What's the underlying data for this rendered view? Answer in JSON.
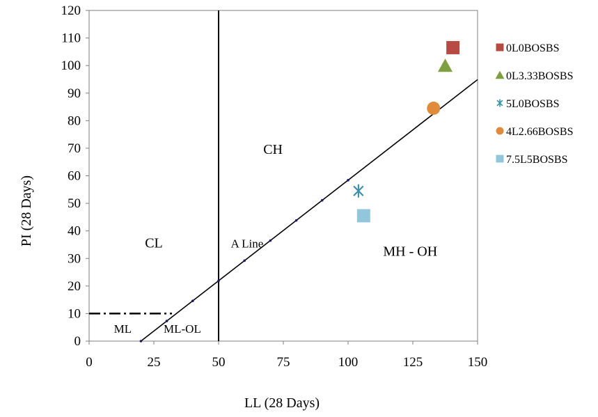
{
  "chart_data": {
    "type": "scatter",
    "xlabel": "LL (28 Days)",
    "ylabel": "PI (28 Days)",
    "xlim": [
      0,
      150
    ],
    "ylim": [
      0,
      120
    ],
    "x_ticks": [
      "0",
      "25",
      "50",
      "75",
      "100",
      "125",
      "150"
    ],
    "y_ticks": [
      "0",
      "10",
      "20",
      "30",
      "40",
      "50",
      "60",
      "70",
      "80",
      "90",
      "100",
      "110",
      "120"
    ],
    "grid": false,
    "legend_position": "right",
    "series": [
      {
        "name": "0L0BOSBS",
        "marker": "square",
        "color": "#b84a44",
        "x": [
          140.5
        ],
        "y": [
          106.5
        ]
      },
      {
        "name": "0L3.33BOSBS",
        "marker": "triangle",
        "color": "#7fa040",
        "x": [
          137.5
        ],
        "y": [
          100
        ]
      },
      {
        "name": "5L0BOSBS",
        "marker": "asterisk",
        "color": "#3a8ea8",
        "x": [
          104
        ],
        "y": [
          54.5
        ]
      },
      {
        "name": "4L2.66BOSBS",
        "marker": "circle",
        "color": "#e08a3c",
        "x": [
          133
        ],
        "y": [
          84.5
        ]
      },
      {
        "name": "7.5L5BOSBS",
        "marker": "square",
        "color": "#92c6db",
        "x": [
          106
        ],
        "y": [
          45.5
        ]
      }
    ],
    "reference_lines": {
      "a_line": {
        "label": "A Line",
        "x": [
          20,
          150
        ],
        "y": [
          0,
          94.9
        ],
        "dot_x": [
          20,
          30,
          40,
          50,
          60,
          70,
          80,
          90,
          100
        ]
      },
      "u_boundary": {
        "x": [
          50,
          50
        ],
        "y": [
          0,
          120
        ]
      },
      "dash_dot": {
        "x": [
          0,
          32
        ],
        "y": [
          10,
          10
        ]
      }
    },
    "region_labels": [
      {
        "text": "CH",
        "x": 71,
        "y": 68
      },
      {
        "text": "CL",
        "x": 25,
        "y": 34
      },
      {
        "text": "A Line",
        "x": 61,
        "y": 34
      },
      {
        "text": "MH - OH",
        "x": 124,
        "y": 31
      },
      {
        "text": "ML",
        "x": 13,
        "y": 3
      },
      {
        "text": "ML-OL",
        "x": 36,
        "y": 3
      }
    ]
  }
}
